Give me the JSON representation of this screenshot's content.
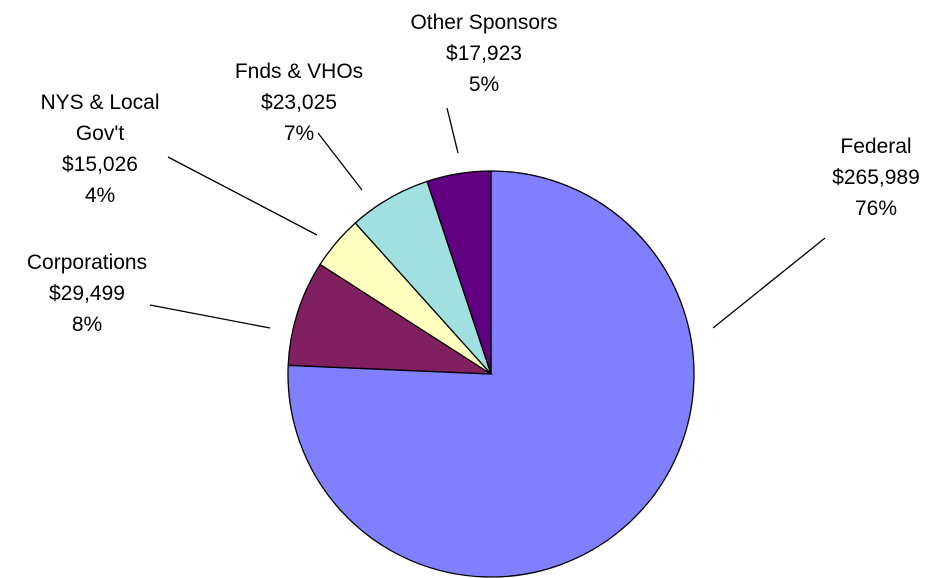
{
  "chart_data": {
    "type": "pie",
    "categories": [
      "Federal",
      "Corporations",
      "NYS & Local Gov't",
      "Fnds & VHOs",
      "Other Sponsors"
    ],
    "values": [
      265989,
      29499,
      15026,
      23025,
      17923
    ],
    "value_labels": [
      "$265,989",
      "$29,499",
      "$15,026",
      "$23,025",
      "$17,923"
    ],
    "percents": [
      76,
      8,
      4,
      7,
      5
    ],
    "percent_labels": [
      "76%",
      "8%",
      "4%",
      "7%",
      "5%"
    ],
    "colors": [
      "#8080ff",
      "#802060",
      "#ffffc0",
      "#a0e0e0",
      "#600080"
    ]
  }
}
